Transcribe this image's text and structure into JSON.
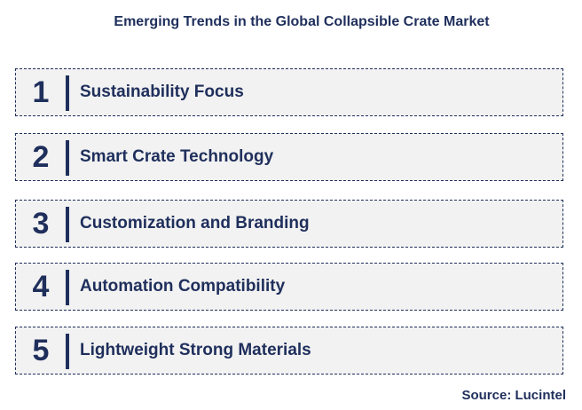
{
  "title": "Emerging Trends in the Global Collapsible Crate Market",
  "trends": [
    {
      "number": "1",
      "label": "Sustainability Focus"
    },
    {
      "number": "2",
      "label": "Smart Crate Technology"
    },
    {
      "number": "3",
      "label": "Customization and Branding"
    },
    {
      "number": "4",
      "label": "Automation Compatibility"
    },
    {
      "number": "5",
      "label": "Lightweight Strong Materials"
    }
  ],
  "source": "Source: Lucintel",
  "colors": {
    "text": "#1f2f5c",
    "row_background": "#f2f2f2"
  }
}
